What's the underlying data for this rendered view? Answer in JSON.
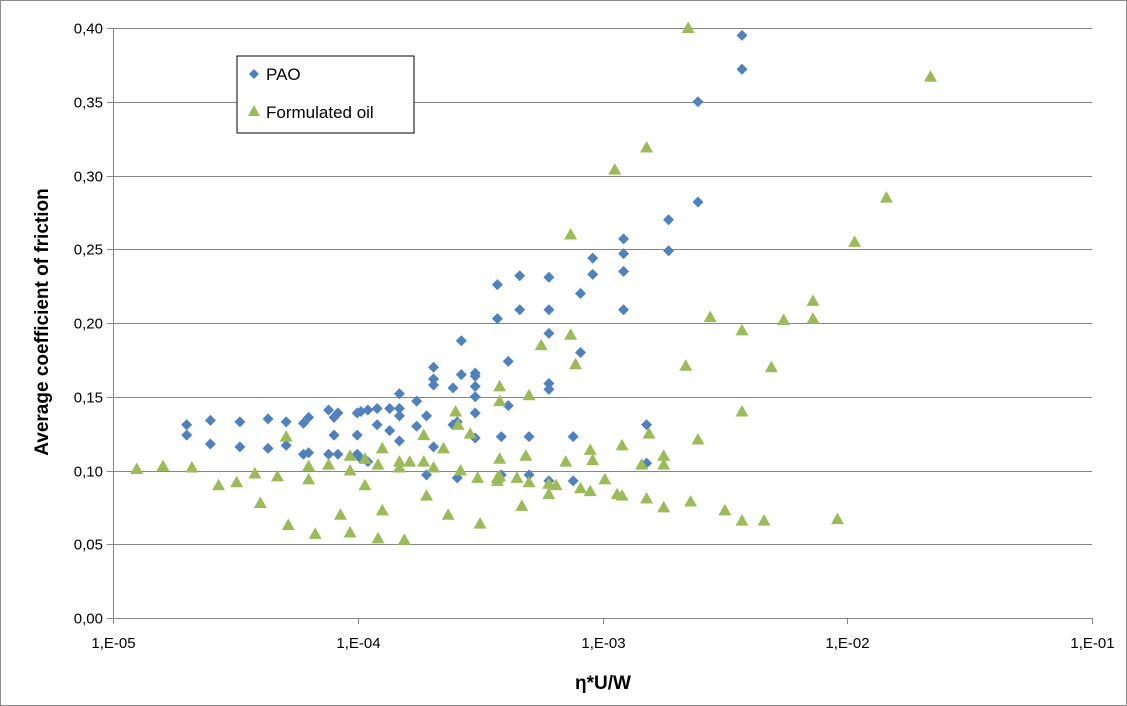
{
  "chart_data": {
    "type": "scatter",
    "title": "",
    "xlabel": "η*U/W",
    "ylabel": "Average coefficient of friction",
    "x_scale": "log",
    "xlim": [
      1e-05,
      0.1
    ],
    "ylim": [
      0,
      0.4
    ],
    "x_tick_values": [
      1e-05,
      0.0001,
      0.001,
      0.01,
      0.1
    ],
    "x_tick_labels": [
      "1,E-05",
      "1,E-04",
      "1,E-03",
      "1,E-02",
      "1,E-01"
    ],
    "y_tick_values": [
      0,
      0.05,
      0.1,
      0.15,
      0.2,
      0.25,
      0.3,
      0.35,
      0.4
    ],
    "y_tick_labels": [
      "0,00",
      "0,05",
      "0,10",
      "0,15",
      "0,20",
      "0,25",
      "0,30",
      "0,35",
      "0,40"
    ],
    "grid": "horizontal major",
    "legend_position": "top-left",
    "series": [
      {
        "name": "PAO",
        "marker": "diamond",
        "color": "#4f81bd",
        "points": [
          [
            2e-05,
            0.131
          ],
          [
            2e-05,
            0.124
          ],
          [
            2.5e-05,
            0.134
          ],
          [
            2.5e-05,
            0.118
          ],
          [
            3.3e-05,
            0.133
          ],
          [
            3.3e-05,
            0.116
          ],
          [
            4.3e-05,
            0.135
          ],
          [
            4.3e-05,
            0.115
          ],
          [
            5.1e-05,
            0.133
          ],
          [
            5.1e-05,
            0.117
          ],
          [
            6e-05,
            0.132
          ],
          [
            6e-05,
            0.111
          ],
          [
            6.3e-05,
            0.136
          ],
          [
            6.3e-05,
            0.112
          ],
          [
            7.6e-05,
            0.141
          ],
          [
            7.6e-05,
            0.111
          ],
          [
            8e-05,
            0.136
          ],
          [
            8e-05,
            0.124
          ],
          [
            8.3e-05,
            0.139
          ],
          [
            8.3e-05,
            0.111
          ],
          [
            9.95e-05,
            0.139
          ],
          [
            9.95e-05,
            0.124
          ],
          [
            9.95e-05,
            0.111
          ],
          [
            0.000103,
            0.14
          ],
          [
            0.000103,
            0.108
          ],
          [
            0.00011,
            0.141
          ],
          [
            0.00011,
            0.106
          ],
          [
            0.00012,
            0.142
          ],
          [
            0.00012,
            0.131
          ],
          [
            0.000135,
            0.142
          ],
          [
            0.000135,
            0.127
          ],
          [
            0.000148,
            0.152
          ],
          [
            0.000148,
            0.142
          ],
          [
            0.000148,
            0.137
          ],
          [
            0.000148,
            0.12
          ],
          [
            0.000174,
            0.147
          ],
          [
            0.000174,
            0.13
          ],
          [
            0.000191,
            0.137
          ],
          [
            0.000191,
            0.097
          ],
          [
            0.000204,
            0.17
          ],
          [
            0.000204,
            0.162
          ],
          [
            0.000204,
            0.158
          ],
          [
            0.000204,
            0.116
          ],
          [
            0.000245,
            0.156
          ],
          [
            0.000245,
            0.131
          ],
          [
            0.000255,
            0.133
          ],
          [
            0.000255,
            0.095
          ],
          [
            0.000265,
            0.188
          ],
          [
            0.000265,
            0.165
          ],
          [
            0.000302,
            0.166
          ],
          [
            0.000302,
            0.164
          ],
          [
            0.000302,
            0.157
          ],
          [
            0.000302,
            0.15
          ],
          [
            0.000302,
            0.139
          ],
          [
            0.000302,
            0.122
          ],
          [
            0.000372,
            0.226
          ],
          [
            0.000372,
            0.203
          ],
          [
            0.000386,
            0.123
          ],
          [
            0.000386,
            0.097
          ],
          [
            0.000412,
            0.174
          ],
          [
            0.000412,
            0.144
          ],
          [
            0.000459,
            0.232
          ],
          [
            0.000459,
            0.209
          ],
          [
            0.000501,
            0.123
          ],
          [
            0.000501,
            0.097
          ],
          [
            0.000604,
            0.231
          ],
          [
            0.000604,
            0.209
          ],
          [
            0.000604,
            0.193
          ],
          [
            0.000604,
            0.159
          ],
          [
            0.000604,
            0.155
          ],
          [
            0.000604,
            0.093
          ],
          [
            0.000759,
            0.123
          ],
          [
            0.000759,
            0.093
          ],
          [
            0.000813,
            0.22
          ],
          [
            0.000813,
            0.18
          ],
          [
            0.000912,
            0.244
          ],
          [
            0.000912,
            0.233
          ],
          [
            0.001219,
            0.257
          ],
          [
            0.001219,
            0.247
          ],
          [
            0.001219,
            0.235
          ],
          [
            0.001219,
            0.209
          ],
          [
            0.001514,
            0.131
          ],
          [
            0.001514,
            0.105
          ],
          [
            0.001862,
            0.27
          ],
          [
            0.001862,
            0.249
          ],
          [
            0.002455,
            0.35
          ],
          [
            0.002455,
            0.282
          ],
          [
            0.003715,
            0.395
          ],
          [
            0.003715,
            0.372
          ]
        ]
      },
      {
        "name": "Formulated oil",
        "marker": "triangle",
        "color": "#9bbb59",
        "points": [
          [
            1.25e-05,
            0.101
          ],
          [
            1.6e-05,
            0.103
          ],
          [
            2.1e-05,
            0.102
          ],
          [
            2.7e-05,
            0.09
          ],
          [
            3.2e-05,
            0.092
          ],
          [
            3.8e-05,
            0.098
          ],
          [
            4e-05,
            0.078
          ],
          [
            4.7e-05,
            0.096
          ],
          [
            5.1e-05,
            0.123
          ],
          [
            5.2e-05,
            0.063
          ],
          [
            6.3e-05,
            0.103
          ],
          [
            6.3e-05,
            0.094
          ],
          [
            6.7e-05,
            0.057
          ],
          [
            7.6e-05,
            0.104
          ],
          [
            8.5e-05,
            0.07
          ],
          [
            9.3e-05,
            0.11
          ],
          [
            9.3e-05,
            0.1
          ],
          [
            9.3e-05,
            0.058
          ],
          [
            0.000107,
            0.108
          ],
          [
            0.000107,
            0.09
          ],
          [
            0.000121,
            0.104
          ],
          [
            0.000121,
            0.054
          ],
          [
            0.000126,
            0.115
          ],
          [
            0.000126,
            0.073
          ],
          [
            0.000148,
            0.106
          ],
          [
            0.000148,
            0.102
          ],
          [
            0.000155,
            0.053
          ],
          [
            0.000163,
            0.106
          ],
          [
            0.000186,
            0.124
          ],
          [
            0.000186,
            0.106
          ],
          [
            0.000191,
            0.083
          ],
          [
            0.000204,
            0.102
          ],
          [
            0.000224,
            0.115
          ],
          [
            0.000234,
            0.07
          ],
          [
            0.000251,
            0.14
          ],
          [
            0.000257,
            0.131
          ],
          [
            0.000263,
            0.1
          ],
          [
            0.000288,
            0.125
          ],
          [
            0.000309,
            0.095
          ],
          [
            0.000316,
            0.064
          ],
          [
            0.000372,
            0.095
          ],
          [
            0.000372,
            0.093
          ],
          [
            0.00038,
            0.157
          ],
          [
            0.00038,
            0.147
          ],
          [
            0.00038,
            0.108
          ],
          [
            0.00038,
            0.096
          ],
          [
            0.000447,
            0.095
          ],
          [
            0.000468,
            0.076
          ],
          [
            0.000486,
            0.11
          ],
          [
            0.000501,
            0.151
          ],
          [
            0.000501,
            0.092
          ],
          [
            0.000562,
            0.185
          ],
          [
            0.000603,
            0.091
          ],
          [
            0.000603,
            0.084
          ],
          [
            0.000646,
            0.09
          ],
          [
            0.000708,
            0.106
          ],
          [
            0.000741,
            0.26
          ],
          [
            0.000741,
            0.192
          ],
          [
            0.000776,
            0.172
          ],
          [
            0.000813,
            0.088
          ],
          [
            0.000891,
            0.114
          ],
          [
            0.000891,
            0.086
          ],
          [
            0.000912,
            0.107
          ],
          [
            0.001023,
            0.094
          ],
          [
            0.001122,
            0.304
          ],
          [
            0.001148,
            0.084
          ],
          [
            0.001202,
            0.117
          ],
          [
            0.001202,
            0.083
          ],
          [
            0.001445,
            0.104
          ],
          [
            0.001514,
            0.319
          ],
          [
            0.001514,
            0.081
          ],
          [
            0.001549,
            0.125
          ],
          [
            0.001778,
            0.11
          ],
          [
            0.001778,
            0.104
          ],
          [
            0.001778,
            0.075
          ],
          [
            0.002188,
            0.171
          ],
          [
            0.002239,
            0.4
          ],
          [
            0.002291,
            0.079
          ],
          [
            0.002455,
            0.121
          ],
          [
            0.002754,
            0.204
          ],
          [
            0.003162,
            0.073
          ],
          [
            0.003715,
            0.195
          ],
          [
            0.003715,
            0.14
          ],
          [
            0.003715,
            0.066
          ],
          [
            0.004571,
            0.066
          ],
          [
            0.004898,
            0.17
          ],
          [
            0.005495,
            0.202
          ],
          [
            0.007244,
            0.215
          ],
          [
            0.007244,
            0.203
          ],
          [
            0.009119,
            0.067
          ],
          [
            0.010715,
            0.255
          ],
          [
            0.014454,
            0.285
          ],
          [
            0.021878,
            0.367
          ]
        ]
      }
    ]
  }
}
